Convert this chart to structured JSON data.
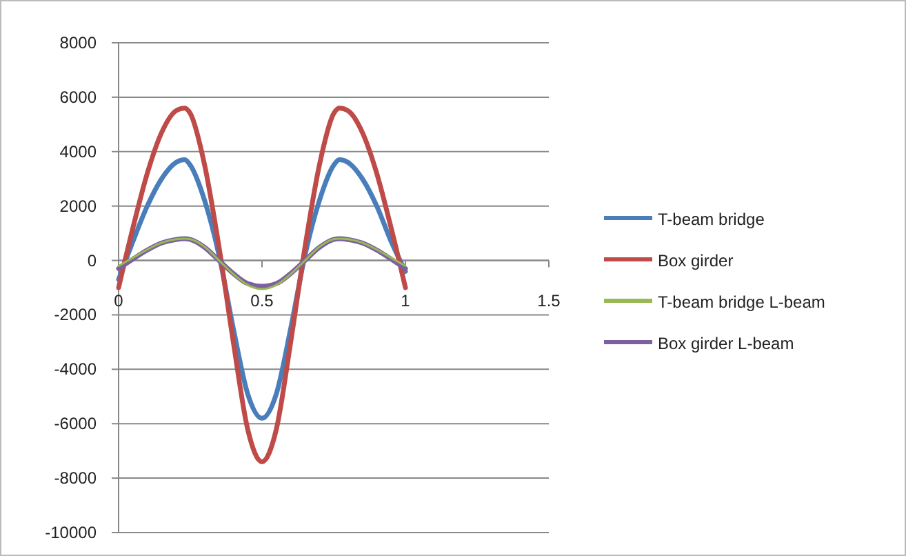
{
  "chart_data": {
    "type": "line",
    "x": [
      0,
      0.05,
      0.1,
      0.15,
      0.2,
      0.23,
      0.25,
      0.3,
      0.35,
      0.4,
      0.45,
      0.5,
      0.55,
      0.6,
      0.65,
      0.7,
      0.75,
      0.77,
      0.8,
      0.85,
      0.9,
      0.95,
      1
    ],
    "series": [
      {
        "name": "T-beam bridge",
        "color": "#4a7ebb",
        "values": [
          -700,
          700,
          2000,
          3000,
          3600,
          3700,
          3500,
          2200,
          200,
          -2500,
          -4900,
          -5800,
          -4900,
          -2500,
          200,
          2200,
          3500,
          3700,
          3600,
          3000,
          2000,
          700,
          -400
        ]
      },
      {
        "name": "Box girder",
        "color": "#be4b48",
        "values": [
          -1000,
          1200,
          3200,
          4700,
          5500,
          5600,
          5400,
          3500,
          500,
          -3000,
          -6200,
          -7400,
          -6200,
          -3000,
          500,
          3500,
          5400,
          5600,
          5500,
          4700,
          3200,
          1200,
          -1000
        ]
      },
      {
        "name": "T-beam bridge L-beam",
        "color": "#98b954",
        "values": [
          -200,
          100,
          400,
          650,
          780,
          800,
          780,
          500,
          0,
          -500,
          -900,
          -1050,
          -900,
          -500,
          0,
          500,
          780,
          800,
          780,
          650,
          400,
          100,
          -200
        ]
      },
      {
        "name": "Box girder L-beam",
        "color": "#7d60a0",
        "values": [
          -300,
          50,
          380,
          640,
          770,
          800,
          770,
          480,
          0,
          -480,
          -850,
          -950,
          -850,
          -480,
          0,
          480,
          770,
          800,
          770,
          640,
          380,
          50,
          -300
        ]
      }
    ],
    "xlim": [
      0,
      1.5
    ],
    "xticks": [
      0,
      0.5,
      1,
      1.5
    ],
    "ylim": [
      -10000,
      8000
    ],
    "yticks": [
      -10000,
      -8000,
      -6000,
      -4000,
      -2000,
      0,
      2000,
      4000,
      6000,
      8000
    ],
    "grid": "y",
    "legend": "right",
    "marker": "none",
    "line_style": "solid"
  }
}
